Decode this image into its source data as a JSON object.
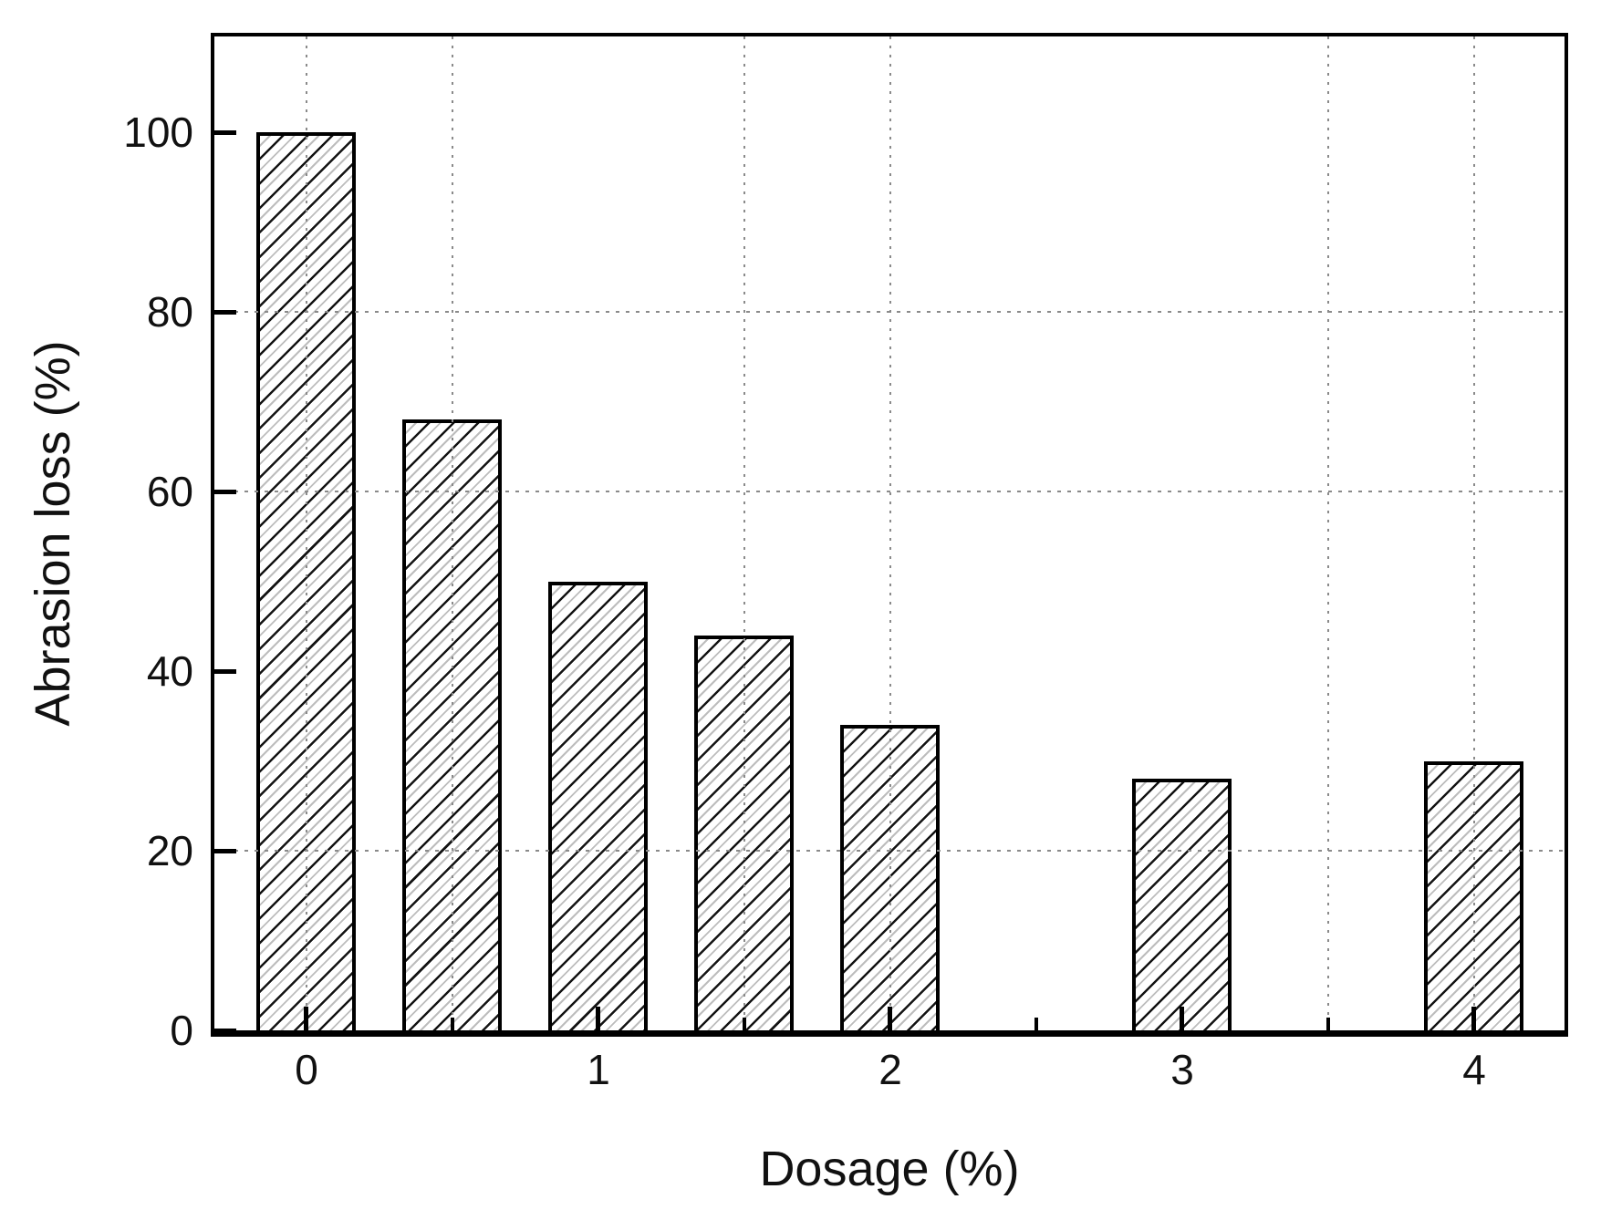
{
  "chart_data": {
    "type": "bar",
    "title": "",
    "xlabel": "Dosage (%)",
    "ylabel": "Abrasion loss (%)",
    "x": [
      0,
      0.5,
      1,
      1.5,
      2,
      3,
      4
    ],
    "values": [
      100,
      68,
      50,
      44,
      34,
      28,
      30
    ],
    "bar_width_x": 0.34,
    "xlim": [
      -0.3156,
      4.3094
    ],
    "ylim": [
      0,
      110.66
    ],
    "x_major_ticks": [
      0,
      1,
      2,
      3,
      4
    ],
    "x_minor_ticks": [
      0.5,
      1.5,
      2.5,
      3.5
    ],
    "x_tick_labels": [
      "0",
      "1",
      "2",
      "3",
      "4"
    ],
    "y_major_ticks": [
      0,
      20,
      40,
      60,
      80,
      100
    ],
    "y_tick_labels": [
      "0",
      "20",
      "40",
      "60",
      "80",
      "100"
    ],
    "grid_on": true,
    "grid_vertical_x": [
      0,
      0.5,
      1.5,
      2,
      3.5,
      4
    ],
    "grid_horizontal_y": [
      20,
      60,
      80
    ],
    "legend_position": "none",
    "colors": {
      "background": "#ffffff",
      "bar_fill": "#ffffff",
      "hatch_dark": "#141414",
      "hatch_light": "#bdbdbd",
      "outline": "#000000",
      "grid": "#8a8a8a",
      "text": "#111111"
    }
  }
}
